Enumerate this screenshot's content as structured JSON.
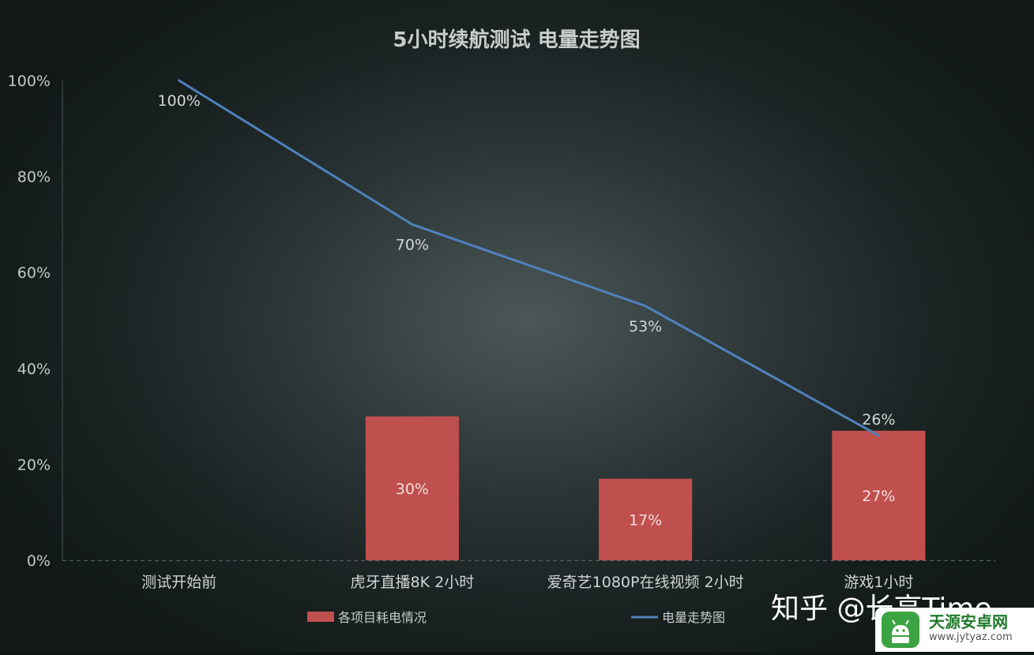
{
  "chart_data": {
    "type": "bar+line",
    "title": "5小时续航测试  电量走势图",
    "categories": [
      "测试开始前",
      "虎牙直播8K  2小时",
      "爱奇艺1080P在线视频 2小时",
      "游戏1小时"
    ],
    "yticks": [
      "0%",
      "20%",
      "40%",
      "60%",
      "80%",
      "100%"
    ],
    "ylim": [
      0,
      100
    ],
    "grid": false,
    "legend_position": "bottom",
    "series": [
      {
        "name": "各项目耗电情况",
        "type": "bar",
        "color": "#c0504d",
        "values": [
          null,
          30,
          17,
          27
        ],
        "labels": [
          "",
          "30%",
          "17%",
          "27%"
        ]
      },
      {
        "name": "电量走势图",
        "type": "line",
        "color": "#4f81bd",
        "values": [
          100,
          70,
          53,
          26
        ],
        "labels": [
          "100%",
          "70%",
          "53%",
          "26%"
        ]
      }
    ]
  },
  "watermark": "知乎 @长高Time",
  "badge": {
    "name": "天源安卓网",
    "url": "www.jytyaz.com"
  }
}
